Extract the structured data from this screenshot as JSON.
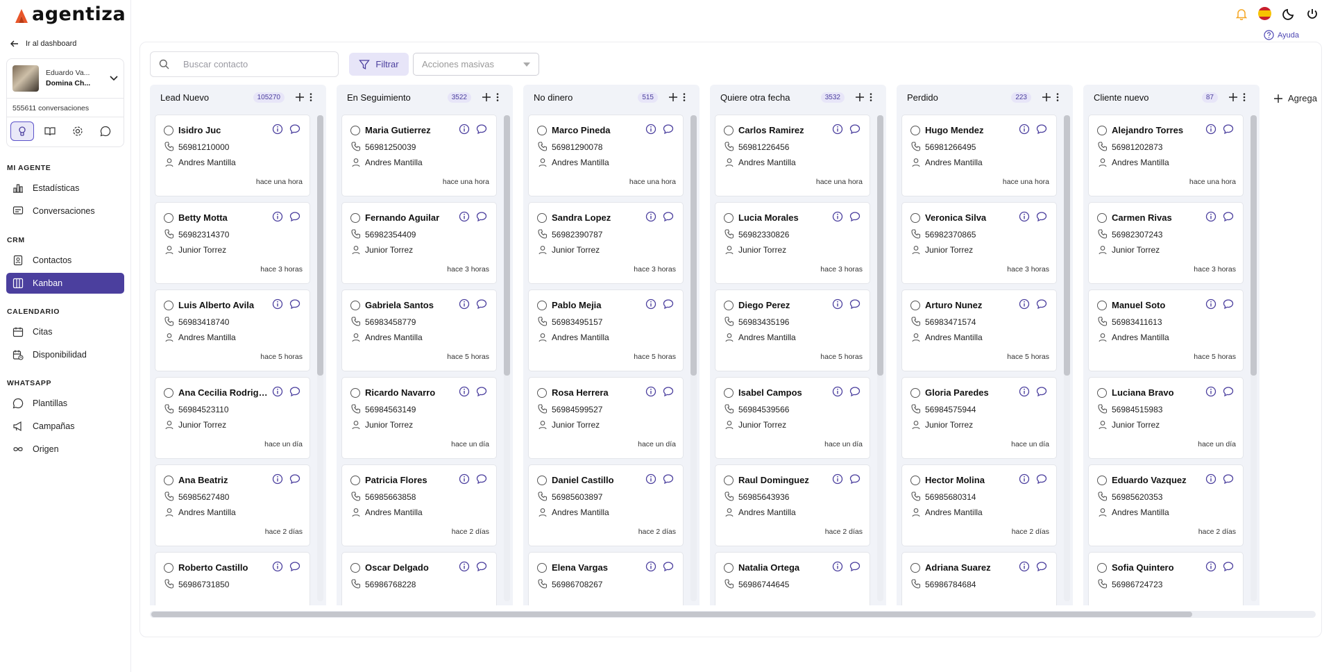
{
  "app": {
    "name": "agentiza"
  },
  "sidebar": {
    "back_label": "Ir al dashboard",
    "agent": {
      "name_line1": "Eduardo Va...",
      "name_line2": "Domina Ch...",
      "conversations": "555611 conversaciones"
    },
    "sections": [
      {
        "title": "MI AGENTE",
        "items": [
          {
            "label": "Estadísticas",
            "icon": "bar-chart-icon"
          },
          {
            "label": "Conversaciones",
            "icon": "message-icon"
          }
        ]
      },
      {
        "title": "CRM",
        "items": [
          {
            "label": "Contactos",
            "icon": "contacts-icon"
          },
          {
            "label": "Kanban",
            "icon": "kanban-icon",
            "active": true
          }
        ]
      },
      {
        "title": "CALENDARIO",
        "items": [
          {
            "label": "Citas",
            "icon": "calendar-icon"
          },
          {
            "label": "Disponibilidad",
            "icon": "calendar-clock-icon"
          }
        ]
      },
      {
        "title": "WHATSAPP",
        "items": [
          {
            "label": "Plantillas",
            "icon": "whatsapp-icon"
          },
          {
            "label": "Campañas",
            "icon": "megaphone-icon"
          },
          {
            "label": "Origen",
            "icon": "infinity-icon"
          }
        ]
      }
    ]
  },
  "header": {
    "help_label": "Ayuda"
  },
  "toolbar": {
    "search_placeholder": "Buscar contacto",
    "filter_label": "Filtrar",
    "bulk_actions_placeholder": "Acciones masivas",
    "add_column_label": "Agrega"
  },
  "colors": {
    "accent": "#4b3f9e",
    "accent_light": "#e7e5f8",
    "column_bg": "#f1f3f8",
    "bell": "#f5a623"
  },
  "columns": [
    {
      "title": "Lead Nuevo",
      "count": "105270",
      "cards": [
        {
          "name": "Isidro Juc",
          "phone": "56981210000",
          "owner": "Andres Mantilla",
          "time": "hace una hora"
        },
        {
          "name": "Betty Motta",
          "phone": "56982314370",
          "owner": "Junior Torrez",
          "time": "hace 3 horas"
        },
        {
          "name": "Luis Alberto Avila",
          "phone": "56983418740",
          "owner": "Andres Mantilla",
          "time": "hace 5 horas"
        },
        {
          "name": "Ana Cecilia Rodriguez",
          "phone": "56984523110",
          "owner": "Junior Torrez",
          "time": "hace un día"
        },
        {
          "name": "Ana Beatriz",
          "phone": "56985627480",
          "owner": "Andres Mantilla",
          "time": "hace 2 días"
        },
        {
          "name": "Roberto Castillo",
          "phone": "56986731850",
          "owner": "",
          "time": ""
        }
      ]
    },
    {
      "title": "En Seguimiento",
      "count": "3522",
      "cards": [
        {
          "name": "Maria Gutierrez",
          "phone": "56981250039",
          "owner": "Andres Mantilla",
          "time": "hace una hora"
        },
        {
          "name": "Fernando Aguilar",
          "phone": "56982354409",
          "owner": "Junior Torrez",
          "time": "hace 3 horas"
        },
        {
          "name": "Gabriela Santos",
          "phone": "56983458779",
          "owner": "Andres Mantilla",
          "time": "hace 5 horas"
        },
        {
          "name": "Ricardo Navarro",
          "phone": "56984563149",
          "owner": "Junior Torrez",
          "time": "hace un día"
        },
        {
          "name": "Patricia Flores",
          "phone": "56985663858",
          "owner": "Andres Mantilla",
          "time": "hace 2 días"
        },
        {
          "name": "Oscar Delgado",
          "phone": "56986768228",
          "owner": "",
          "time": ""
        }
      ]
    },
    {
      "title": "No dinero",
      "count": "515",
      "cards": [
        {
          "name": "Marco Pineda",
          "phone": "56981290078",
          "owner": "Andres Mantilla",
          "time": "hace una hora"
        },
        {
          "name": "Sandra Lopez",
          "phone": "56982390787",
          "owner": "Junior Torrez",
          "time": "hace 3 horas"
        },
        {
          "name": "Pablo Mejia",
          "phone": "56983495157",
          "owner": "Andres Mantilla",
          "time": "hace 5 horas"
        },
        {
          "name": "Rosa Herrera",
          "phone": "56984599527",
          "owner": "Junior Torrez",
          "time": "hace un día"
        },
        {
          "name": "Daniel Castillo",
          "phone": "56985603897",
          "owner": "Andres Mantilla",
          "time": "hace 2 días"
        },
        {
          "name": "Elena Vargas",
          "phone": "56986708267",
          "owner": "",
          "time": ""
        }
      ]
    },
    {
      "title": "Quiere otra fecha",
      "count": "3532",
      "cards": [
        {
          "name": "Carlos Ramirez",
          "phone": "56981226456",
          "owner": "Andres Mantilla",
          "time": "hace una hora"
        },
        {
          "name": "Lucia Morales",
          "phone": "56982330826",
          "owner": "Junior Torrez",
          "time": "hace 3 horas"
        },
        {
          "name": "Diego Perez",
          "phone": "56983435196",
          "owner": "Andres Mantilla",
          "time": "hace 5 horas"
        },
        {
          "name": "Isabel Campos",
          "phone": "56984539566",
          "owner": "Junior Torrez",
          "time": "hace un día"
        },
        {
          "name": "Raul Dominguez",
          "phone": "56985643936",
          "owner": "Andres Mantilla",
          "time": "hace 2 días"
        },
        {
          "name": "Natalia Ortega",
          "phone": "56986744645",
          "owner": "",
          "time": ""
        }
      ]
    },
    {
      "title": "Perdido",
      "count": "223",
      "cards": [
        {
          "name": "Hugo Mendez",
          "phone": "56981266495",
          "owner": "Andres Mantilla",
          "time": "hace una hora"
        },
        {
          "name": "Veronica Silva",
          "phone": "56982370865",
          "owner": "Junior Torrez",
          "time": "hace 3 horas"
        },
        {
          "name": "Arturo Nunez",
          "phone": "56983471574",
          "owner": "Andres Mantilla",
          "time": "hace 5 horas"
        },
        {
          "name": "Gloria Paredes",
          "phone": "56984575944",
          "owner": "Junior Torrez",
          "time": "hace un día"
        },
        {
          "name": "Hector Molina",
          "phone": "56985680314",
          "owner": "Andres Mantilla",
          "time": "hace 2 días"
        },
        {
          "name": "Adriana Suarez",
          "phone": "56986784684",
          "owner": "",
          "time": ""
        }
      ]
    },
    {
      "title": "Cliente nuevo",
      "count": "87",
      "cards": [
        {
          "name": "Alejandro Torres",
          "phone": "56981202873",
          "owner": "Andres Mantilla",
          "time": "hace una hora"
        },
        {
          "name": "Carmen Rivas",
          "phone": "56982307243",
          "owner": "Junior Torrez",
          "time": "hace 3 horas"
        },
        {
          "name": "Manuel Soto",
          "phone": "56983411613",
          "owner": "Andres Mantilla",
          "time": "hace 5 horas"
        },
        {
          "name": "Luciana Bravo",
          "phone": "56984515983",
          "owner": "Junior Torrez",
          "time": "hace un día"
        },
        {
          "name": "Eduardo Vazquez",
          "phone": "56985620353",
          "owner": "Andres Mantilla",
          "time": "hace 2 días"
        },
        {
          "name": "Sofia Quintero",
          "phone": "56986724723",
          "owner": "",
          "time": ""
        }
      ]
    }
  ]
}
